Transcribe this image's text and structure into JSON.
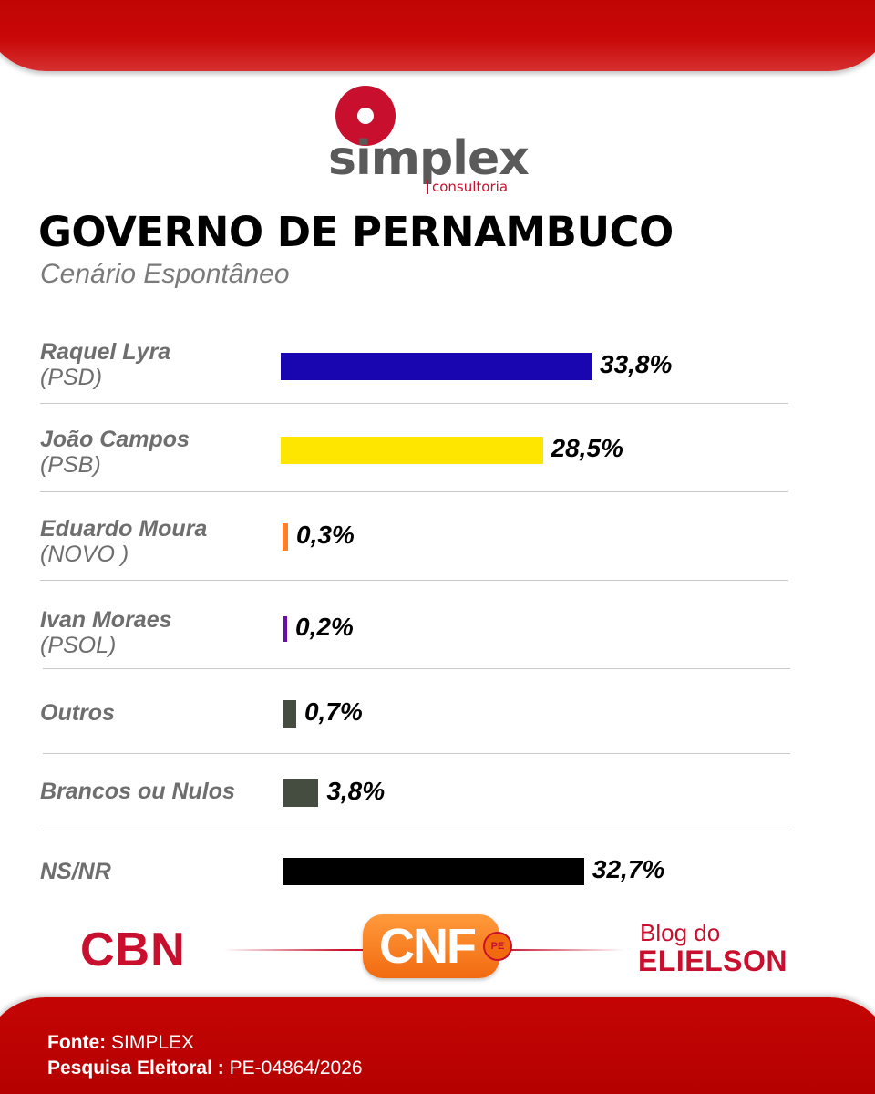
{
  "logo": {
    "word": "simplex",
    "sub": "consultoria"
  },
  "title": "GOVERNO DE PERNAMBUCO",
  "subtitle": "Cenário Espontâneo",
  "chart_data": {
    "type": "bar",
    "orientation": "horizontal",
    "title": "GOVERNO DE PERNAMBUCO",
    "subtitle": "Cenário Espontâneo",
    "unit": "%",
    "rows": [
      {
        "name": "Raquel Lyra",
        "party": "(PSD)",
        "value": 33.8,
        "label": "33,8%",
        "color": "#1a06b0"
      },
      {
        "name": "João Campos",
        "party": "(PSB)",
        "value": 28.5,
        "label": "28,5%",
        "color": "#ffe600"
      },
      {
        "name": "Eduardo Moura",
        "party": "(NOVO )",
        "value": 0.3,
        "label": "0,3%",
        "color": "#ff7f2a"
      },
      {
        "name": "Ivan Moraes",
        "party": "(PSOL)",
        "value": 0.2,
        "label": "0,2%",
        "color": "#6a0dad"
      },
      {
        "name": "Outros",
        "party": "",
        "value": 0.7,
        "label": "0,7%",
        "color": "#454d40"
      },
      {
        "name": "Brancos ou Nulos",
        "party": "",
        "value": 3.8,
        "label": "3,8%",
        "color": "#454d40"
      },
      {
        "name": "NS/NR",
        "party": "",
        "value": 32.7,
        "label": "32,7%",
        "color": "#000000"
      }
    ]
  },
  "footer": {
    "cbn": "CBN",
    "cnf": "CNF",
    "cnf_badge": "PE",
    "blog_top": "Blog do",
    "blog_bottom": "ELIELSON",
    "source_label": "Fonte:",
    "source_value": "SIMPLEX",
    "survey_label": "Pesquisa Eleitoral :",
    "survey_value": "PE-04864/2026"
  }
}
